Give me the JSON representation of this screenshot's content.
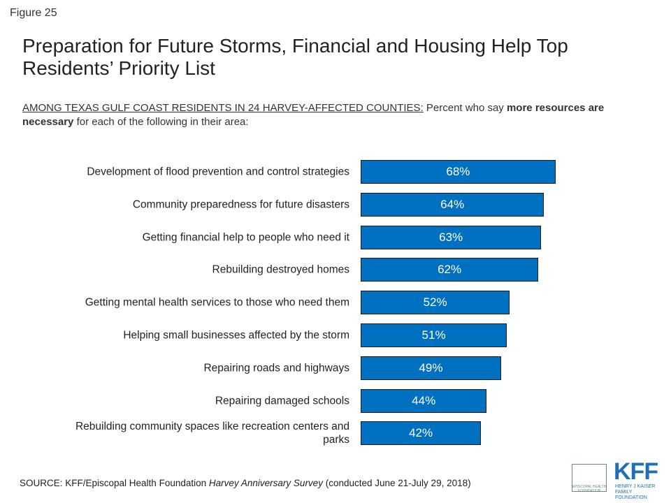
{
  "figure_label": "Figure 25",
  "chart_data": {
    "type": "bar",
    "orientation": "horizontal",
    "title": "Preparation for Future Storms, Financial and Housing Help Top Residents’ Priority List",
    "subtitle": {
      "underlined": "AMONG TEXAS GULF COAST RESIDENTS IN 24 HARVEY-AFFECTED COUNTIES:",
      "plain": "Percent who say",
      "bold": "more resources are necessary",
      "rest": "for each of the following in their area:"
    },
    "categories": [
      "Development of flood prevention and control strategies",
      "Community preparedness for future disasters",
      "Getting financial help to people who need it",
      "Rebuilding destroyed homes",
      "Getting mental health services to those who need them",
      "Helping small businesses affected by the storm",
      "Repairing roads and highways",
      "Repairing damaged schools",
      "Rebuilding community spaces like recreation centers and parks"
    ],
    "values": [
      68,
      64,
      63,
      62,
      52,
      51,
      49,
      44,
      42
    ],
    "value_labels": [
      "68%",
      "64%",
      "63%",
      "62%",
      "52%",
      "51%",
      "49%",
      "44%",
      "42%"
    ],
    "color": "#0070c0"
  },
  "source": {
    "prefix": "SOURCE: KFF/Episcopal Health Foundation",
    "italic": "Harvey Anniversary Survey",
    "suffix": "(conducted June 21-July 29, 2018)"
  },
  "logos": {
    "ehf": "EPISCOPAL HEALTH FOUNDATION",
    "kff": "KFF",
    "kff_name": "HENRY J KAISER FAMILY FOUNDATION"
  }
}
